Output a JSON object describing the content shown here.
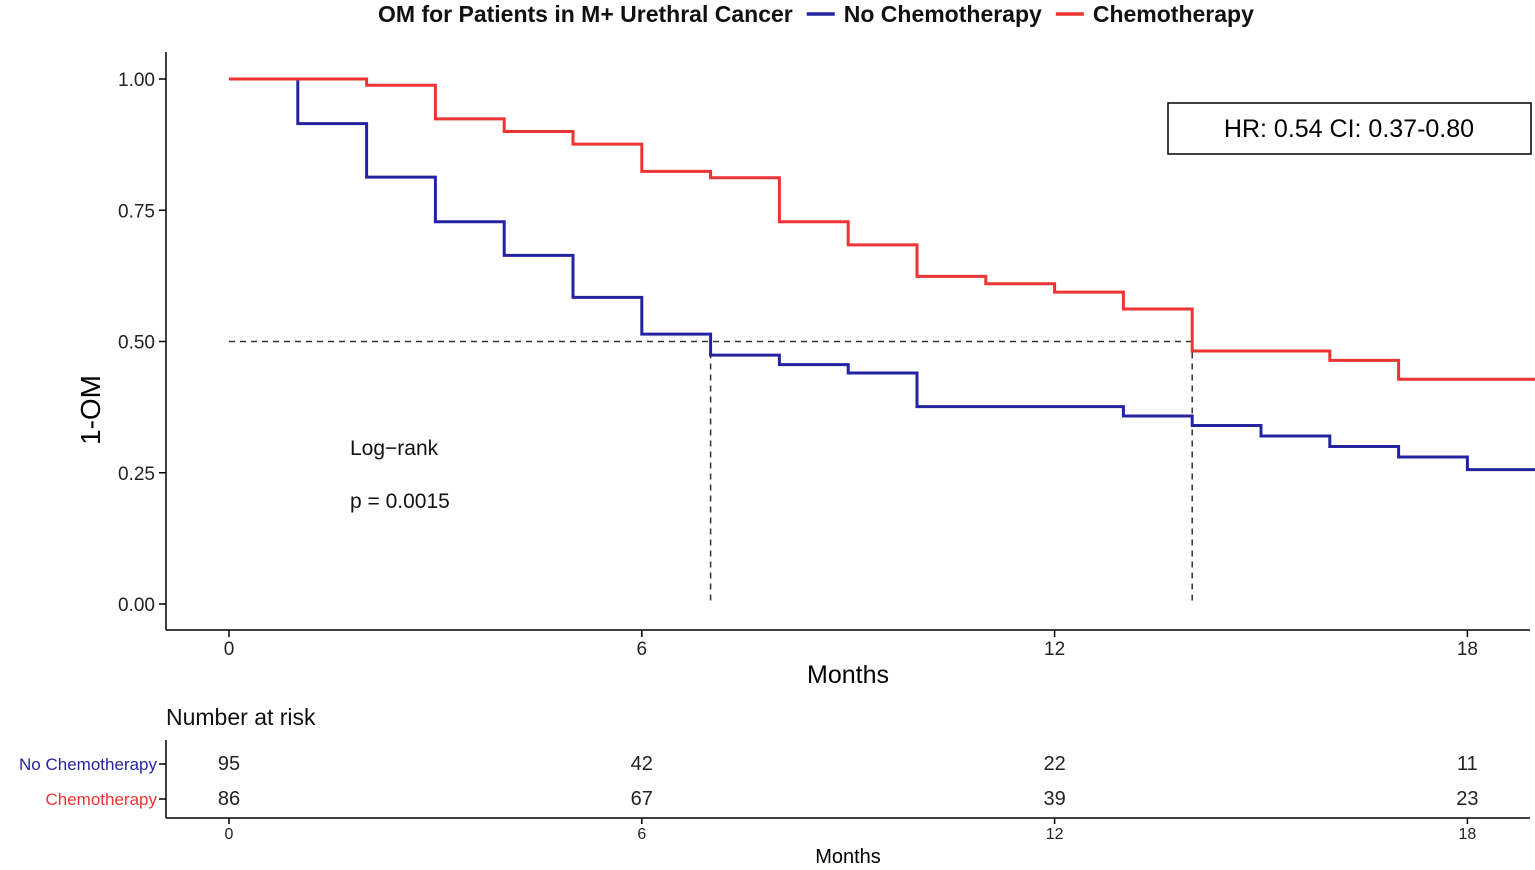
{
  "chart_data": {
    "type": "kaplan-meier",
    "title": "OM for Patients in M+ Urethral Cancer",
    "ylabel": "1-OM",
    "xlabel": "Months",
    "xlim": [
      0,
      19
    ],
    "ylim": [
      0,
      1
    ],
    "xticks": [
      0,
      6,
      12,
      18
    ],
    "yticks": [
      0.0,
      0.25,
      0.5,
      0.75,
      1.0
    ],
    "ytick_labels": [
      "0.00",
      "0.25",
      "0.50",
      "0.75",
      "1.00"
    ],
    "series": [
      {
        "name": "No Chemotherapy",
        "color": "#2424a0",
        "x": [
          0,
          1,
          2,
          3,
          4,
          5,
          6,
          7,
          8,
          9,
          10,
          11,
          12,
          13,
          14,
          15,
          16,
          17,
          18,
          19
        ],
        "y": [
          1.0,
          0.915,
          0.813,
          0.728,
          0.664,
          0.584,
          0.514,
          0.474,
          0.456,
          0.44,
          0.376,
          0.376,
          0.376,
          0.358,
          0.34,
          0.32,
          0.3,
          0.28,
          0.256,
          0.256
        ]
      },
      {
        "name": "Chemotherapy",
        "color": "#ee3333",
        "x": [
          0,
          1,
          2,
          3,
          4,
          5,
          6,
          7,
          8,
          9,
          10,
          11,
          12,
          13,
          14,
          15,
          16,
          17,
          18,
          19
        ],
        "y": [
          1.0,
          1.0,
          0.988,
          0.924,
          0.9,
          0.876,
          0.824,
          0.812,
          0.728,
          0.684,
          0.624,
          0.61,
          0.594,
          0.562,
          0.482,
          0.482,
          0.464,
          0.428,
          0.428,
          0.428
        ]
      }
    ],
    "median_survival": {
      "No Chemotherapy": 7,
      "Chemotherapy": 14
    },
    "reference_line_y": 0.5,
    "annotations": {
      "hr_box": "HR: 0.54 CI: 0.37-0.80",
      "logrank_label": "Log−rank",
      "p_value": "p = 0.0015"
    },
    "risk_table": {
      "title": "Number at risk",
      "xlabel": "Months",
      "timepoints": [
        0,
        6,
        12,
        18
      ],
      "rows": [
        {
          "name": "No Chemotherapy",
          "color": "#2424a0",
          "values": [
            95,
            42,
            22,
            11
          ]
        },
        {
          "name": "Chemotherapy",
          "color": "#ee3333",
          "values": [
            86,
            67,
            39,
            23
          ]
        }
      ]
    }
  }
}
